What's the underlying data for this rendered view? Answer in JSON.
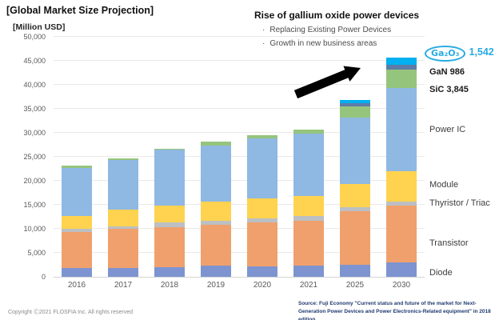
{
  "header": {
    "title": "[Global Market Size Projection]",
    "unit_label": "[Million USD]",
    "headline": "Rise of gallium oxide power devices",
    "bullet_dot": "・",
    "bullets": [
      "Replacing Existing Power Devices",
      "Growth in new business areas"
    ]
  },
  "annotations": {
    "ga2o3_label": "Ga₂O₃",
    "ga2o3_value": "1,542",
    "gan_label": "GaN 986",
    "sic_label": "SiC 3,845",
    "segment_labels": [
      "Power IC",
      "Module",
      "Thyristor / Triac",
      "Transistor",
      "Diode"
    ]
  },
  "footer": {
    "copyright": "Copyright Ⓒ2021 FLOSFIA Inc. All rights reserved",
    "source": "Source: Fuji Economy \"Current status and future of the market for Next-Generation Power Devices and Power Electronics-Related equipment\" in 2018 edition."
  },
  "colors": {
    "accent_cyan": "#29abe2",
    "arrow_black": "#000000",
    "gridline": "#e9e9e9",
    "axis_text": "#595959"
  },
  "chart_data": {
    "type": "bar",
    "stacked": true,
    "title": "[Global Market Size Projection]",
    "ylabel": "[Million USD]",
    "xlabel": "",
    "ylim": [
      0,
      50000
    ],
    "ytick_step": 5000,
    "grid": true,
    "legend_position": "right",
    "categories": [
      "2016",
      "2017",
      "2018",
      "2019",
      "2020",
      "2021",
      "2025",
      "2030"
    ],
    "series": [
      {
        "name": "Diode",
        "key": "diode",
        "color": "#7d94d1",
        "values": [
          1900,
          1900,
          2000,
          2300,
          2200,
          2350,
          2500,
          3000
        ]
      },
      {
        "name": "Transistor",
        "key": "transistor",
        "color": "#f0a06c",
        "values": [
          7400,
          8100,
          8300,
          8600,
          9200,
          9300,
          11200,
          11900
        ]
      },
      {
        "name": "Thyristor / Triac",
        "key": "thyristor-triac",
        "color": "#bcbfc3",
        "values": [
          700,
          550,
          1000,
          850,
          700,
          1000,
          850,
          700
        ]
      },
      {
        "name": "Module",
        "key": "module",
        "color": "#ffd34f",
        "values": [
          2600,
          3500,
          3550,
          3900,
          4250,
          4250,
          4750,
          6400
        ]
      },
      {
        "name": "Power IC",
        "key": "power-ic",
        "color": "#8fb8e2",
        "values": [
          10150,
          10250,
          11600,
          11750,
          12450,
          13000,
          13800,
          17300
        ]
      },
      {
        "name": "SiC",
        "key": "sic",
        "color": "#95c47d",
        "values": [
          350,
          300,
          300,
          700,
          700,
          800,
          2400,
          3845
        ]
      },
      {
        "name": "GaN",
        "key": "gan",
        "color": "#5e7ca8",
        "values": [
          0,
          0,
          0,
          0,
          0,
          0,
          700,
          986
        ]
      },
      {
        "name": "Ga₂O₃",
        "key": "ga2o3",
        "color": "#00b0f0",
        "values": [
          0,
          0,
          0,
          0,
          0,
          0,
          700,
          1542
        ]
      }
    ],
    "callouts": [
      {
        "series": "Ga₂O₃",
        "value": 1542
      },
      {
        "series": "GaN",
        "value": 986
      },
      {
        "series": "SiC",
        "value": 3845
      }
    ]
  }
}
